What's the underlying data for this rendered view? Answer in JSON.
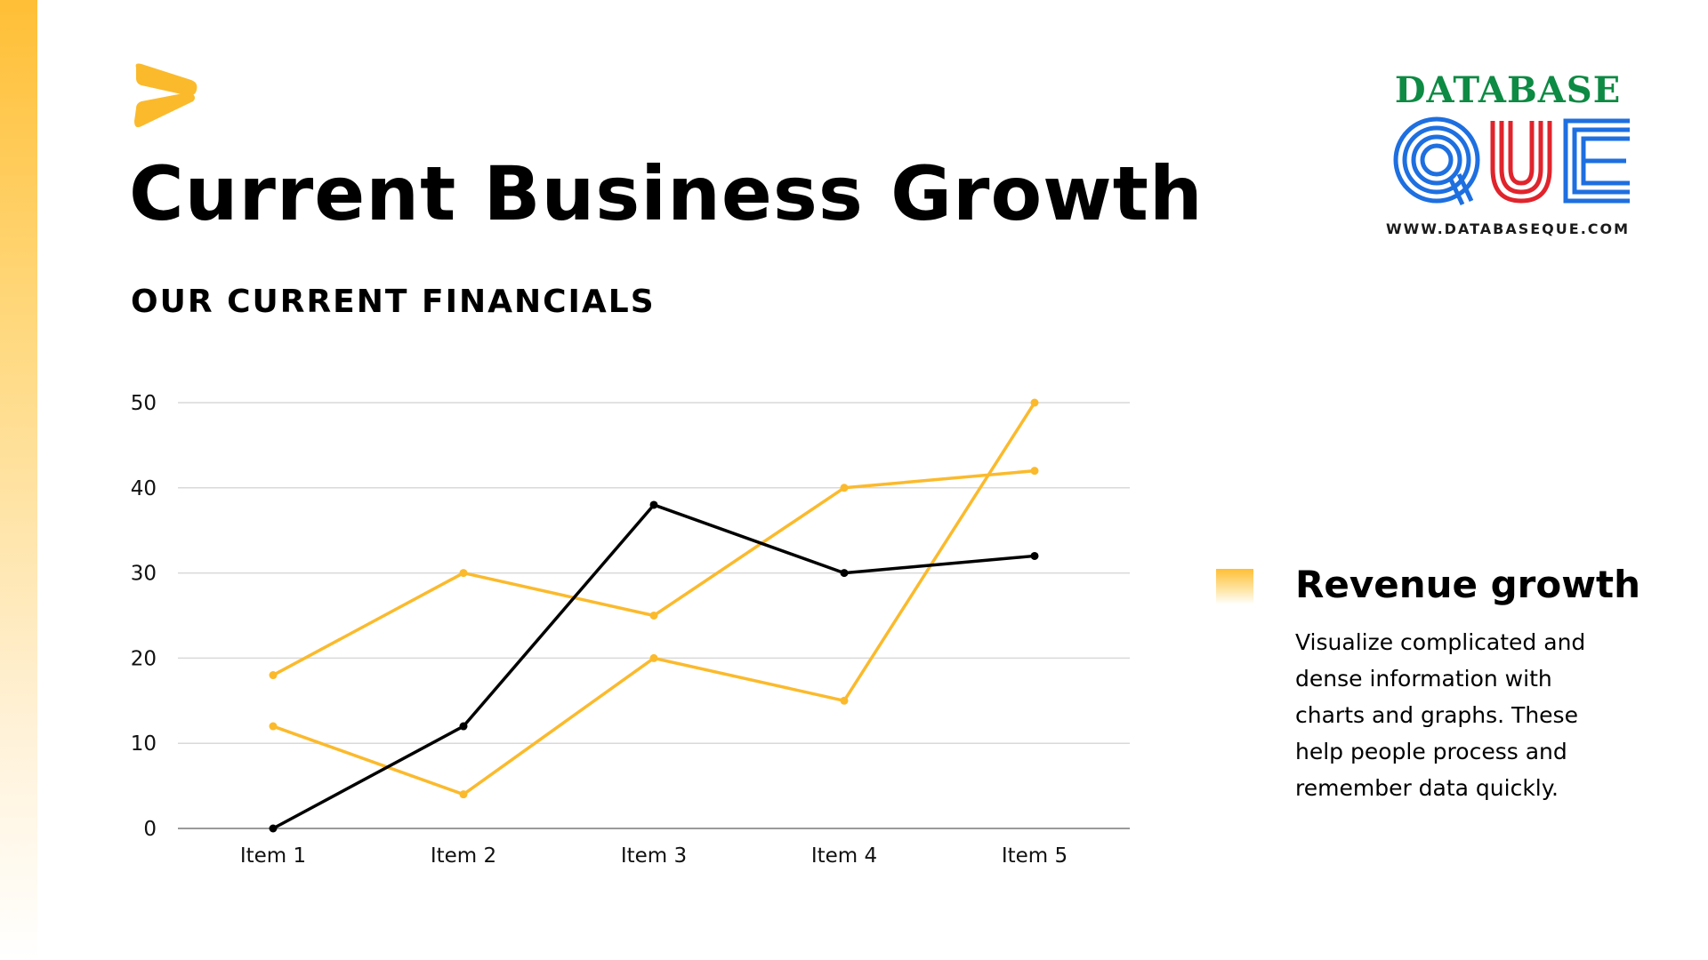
{
  "page": {
    "title": "Current Business Growth",
    "subtitle": "OUR CURRENT FINANCIALS",
    "brand_icon": "chevron-arrow-icon",
    "accent_color": "#FFBF36"
  },
  "logo": {
    "top_text": "DATABASE",
    "main_text": "QUE",
    "url": "WWW.DATABASEQUE.COM",
    "colors": {
      "top_text": "#0D8A43",
      "q": "#1E6FE0",
      "u": "#E0242C",
      "e": "#1E6FE0"
    }
  },
  "legend": {
    "title": "Revenue growth",
    "body_lines": [
      "Visualize complicated and",
      "dense information with",
      "charts and graphs. These",
      "help people process and",
      "remember data quickly."
    ]
  },
  "chart_data": {
    "type": "line",
    "title": "",
    "xlabel": "",
    "ylabel": "",
    "categories": [
      "Item 1",
      "Item 2",
      "Item 3",
      "Item 4",
      "Item 5"
    ],
    "ylim": [
      0,
      50
    ],
    "yticks": [
      0,
      10,
      20,
      30,
      40,
      50
    ],
    "grid": true,
    "series": [
      {
        "values": [
          18,
          30,
          25,
          40,
          42
        ],
        "color": "#FBBA2C"
      },
      {
        "values": [
          12,
          4,
          20,
          15,
          50
        ],
        "color": "#FBBA2C"
      },
      {
        "values": [
          0,
          12,
          38,
          30,
          32
        ],
        "color": "#000000"
      }
    ]
  }
}
